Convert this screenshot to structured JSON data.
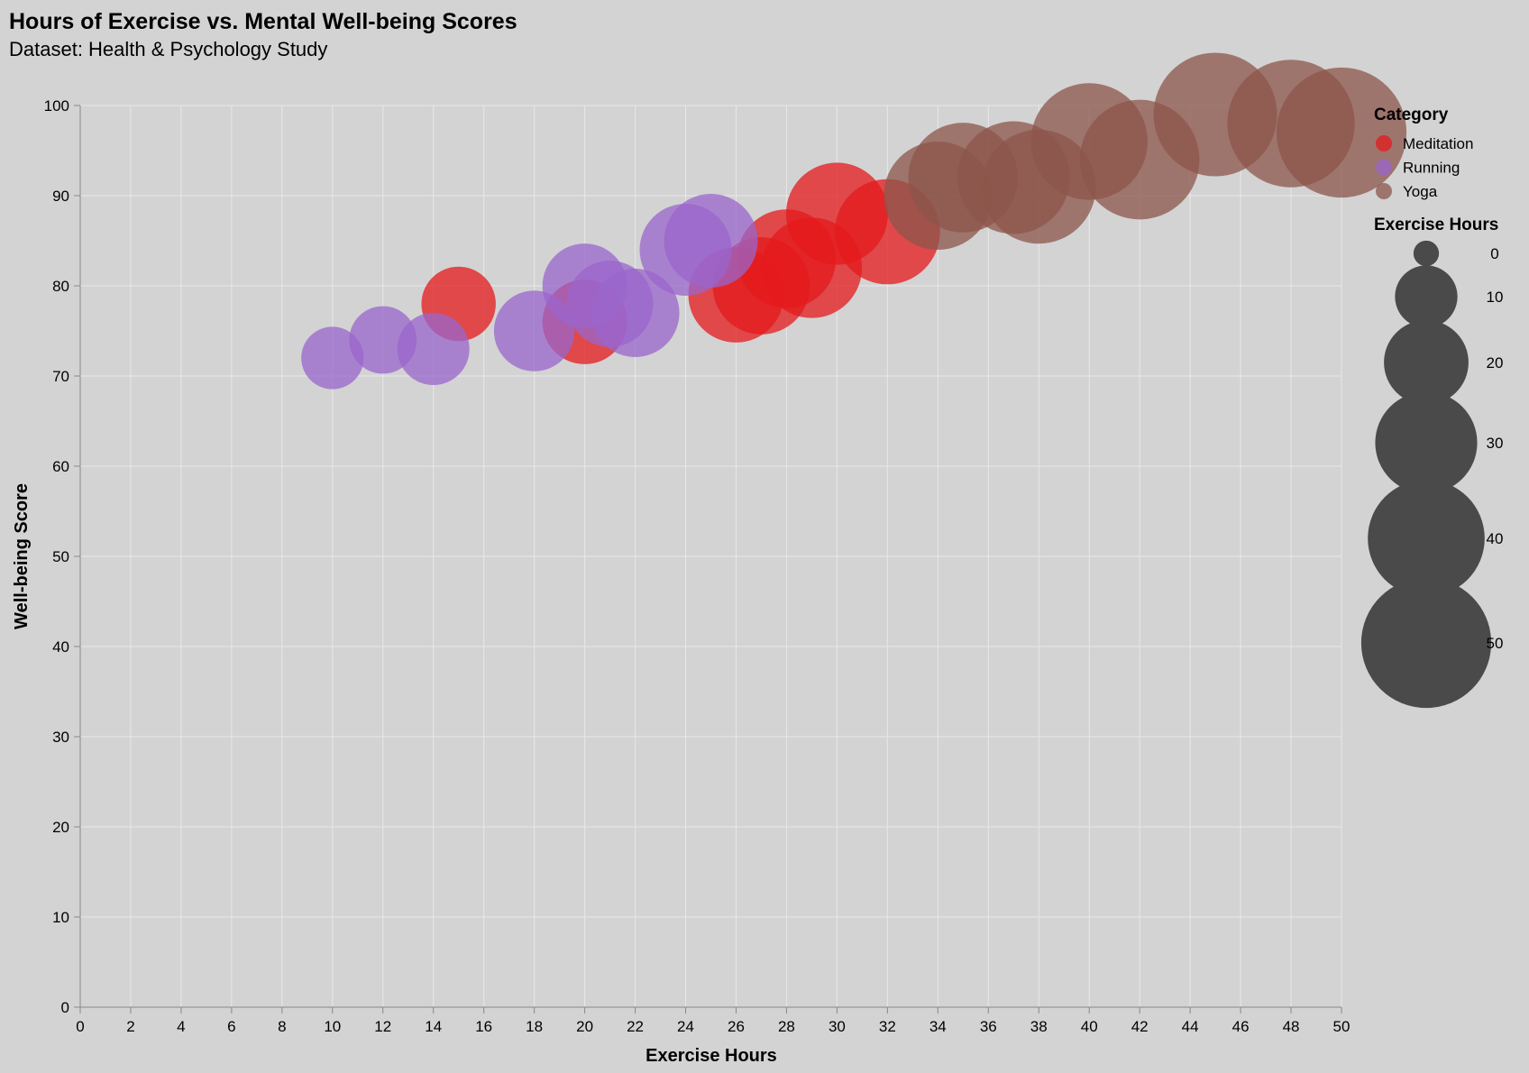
{
  "chart_data": {
    "type": "scatter",
    "title": "Hours of Exercise vs. Mental Well-being Scores",
    "subtitle": "Dataset: Health & Psychology Study",
    "xlabel": "Exercise Hours",
    "ylabel": "Well-being Score",
    "xlim": [
      0,
      50
    ],
    "ylim": [
      0,
      100
    ],
    "x_ticks": [
      0,
      2,
      4,
      6,
      8,
      10,
      12,
      14,
      16,
      18,
      20,
      22,
      24,
      26,
      28,
      30,
      32,
      34,
      36,
      38,
      40,
      42,
      44,
      46,
      48,
      50
    ],
    "y_ticks": [
      0,
      10,
      20,
      30,
      40,
      50,
      60,
      70,
      80,
      90,
      100
    ],
    "grid": true,
    "size_encoding": "Exercise Hours",
    "legend": {
      "position": "right",
      "color_title": "Category",
      "size_title": "Exercise Hours",
      "size_values": [
        0,
        10,
        20,
        30,
        40,
        50
      ]
    },
    "series": [
      {
        "name": "Meditation",
        "color": "#e41a1c",
        "points": [
          {
            "x": 15,
            "y": 78
          },
          {
            "x": 20,
            "y": 76
          },
          {
            "x": 26,
            "y": 79
          },
          {
            "x": 27,
            "y": 80
          },
          {
            "x": 28,
            "y": 83
          },
          {
            "x": 29,
            "y": 82
          },
          {
            "x": 30,
            "y": 88
          },
          {
            "x": 32,
            "y": 86
          }
        ]
      },
      {
        "name": "Running",
        "color": "#9966cc",
        "points": [
          {
            "x": 10,
            "y": 72
          },
          {
            "x": 12,
            "y": 74
          },
          {
            "x": 14,
            "y": 73
          },
          {
            "x": 18,
            "y": 75
          },
          {
            "x": 20,
            "y": 80
          },
          {
            "x": 21,
            "y": 78
          },
          {
            "x": 22,
            "y": 77
          },
          {
            "x": 24,
            "y": 84
          },
          {
            "x": 25,
            "y": 85
          }
        ]
      },
      {
        "name": "Yoga",
        "color": "#8c564b",
        "points": [
          {
            "x": 34,
            "y": 90
          },
          {
            "x": 35,
            "y": 92
          },
          {
            "x": 37,
            "y": 92
          },
          {
            "x": 38,
            "y": 91
          },
          {
            "x": 40,
            "y": 96
          },
          {
            "x": 42,
            "y": 94
          },
          {
            "x": 45,
            "y": 99
          },
          {
            "x": 48,
            "y": 98
          },
          {
            "x": 50,
            "y": 97
          }
        ]
      }
    ]
  }
}
